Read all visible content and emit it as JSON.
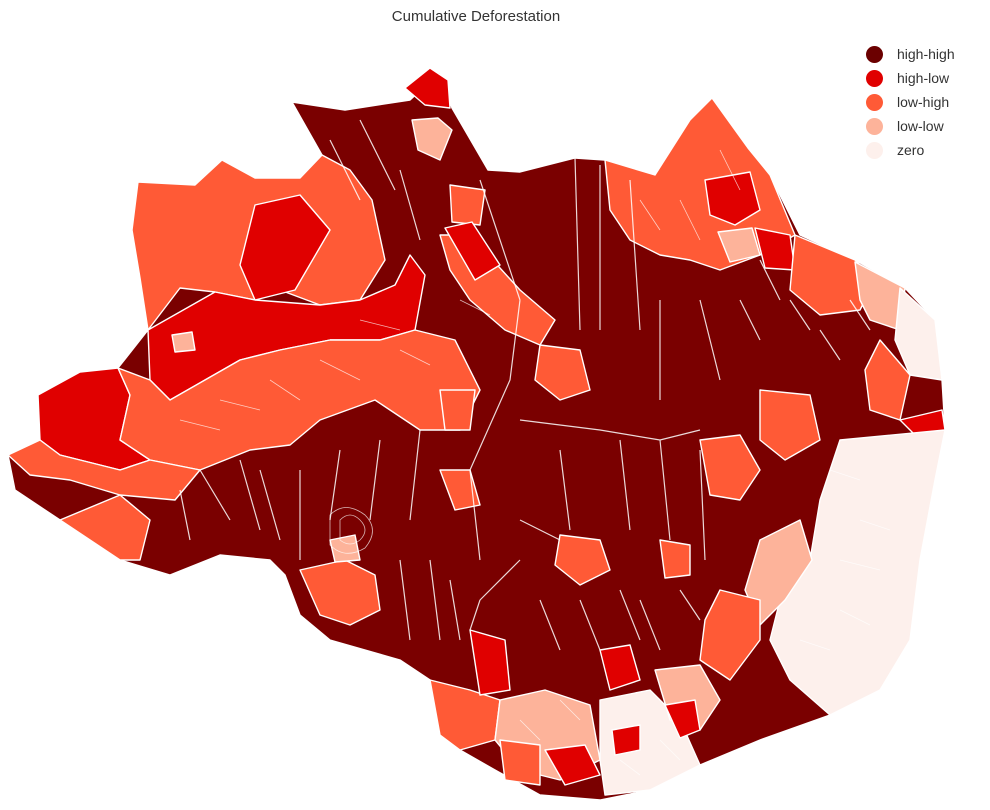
{
  "title": "Cumulative Deforestation",
  "legend": [
    {
      "label": "high-high",
      "color": "#6b0000"
    },
    {
      "label": "high-low",
      "color": "#e00000"
    },
    {
      "label": "low-high",
      "color": "#ff5a36"
    },
    {
      "label": "low-low",
      "color": "#fdb39a"
    },
    {
      "label": "zero",
      "color": "#fdf0ec"
    }
  ]
}
